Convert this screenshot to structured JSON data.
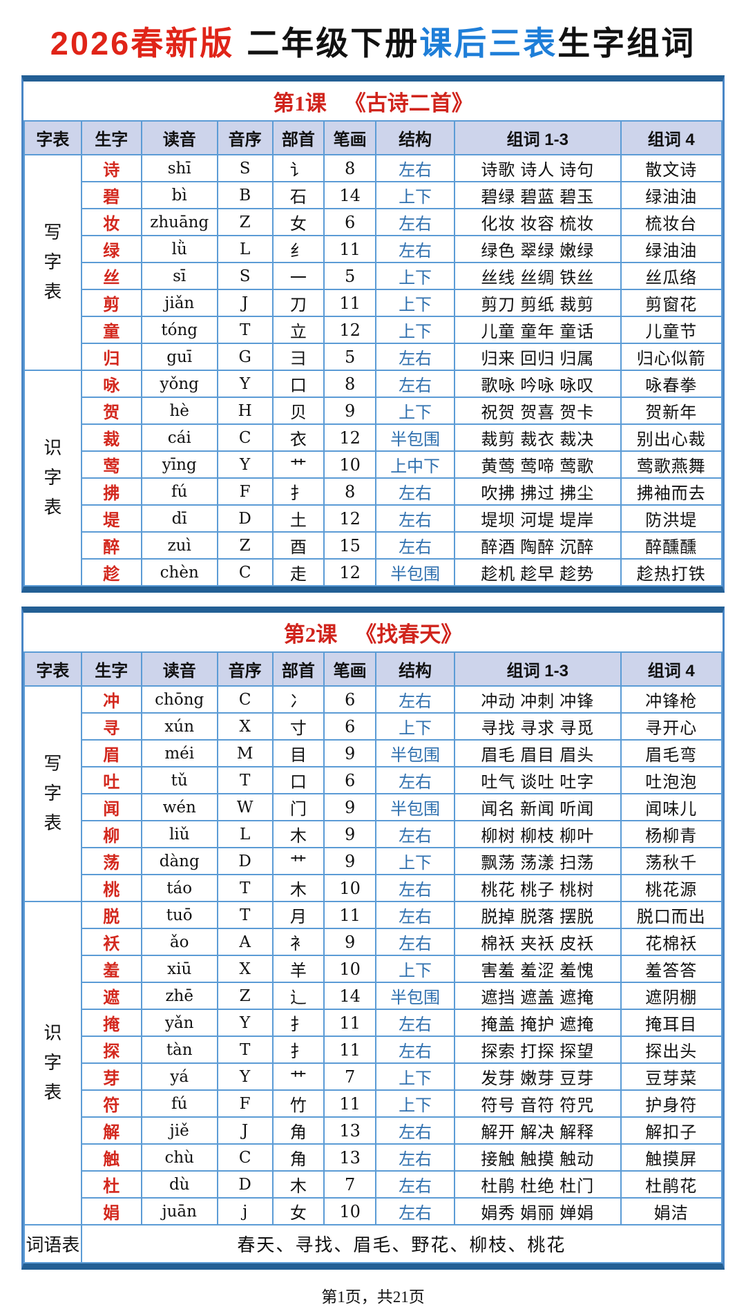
{
  "page": {
    "title_parts": [
      {
        "text": "2026春新版",
        "color": "#e02418"
      },
      {
        "text": "二年级下册",
        "color": "#111111"
      },
      {
        "text": "课后三表",
        "color": "#1e7ed8"
      },
      {
        "text": "生字组词",
        "color": "#111111"
      }
    ],
    "footer": "第1页，共21页"
  },
  "colors": {
    "accent_red": "#d3281e",
    "accent_blue": "#2e6fae",
    "frame_blue": "#235f94",
    "grid_blue": "#5b9bd5",
    "header_bg": "#cdd4eb"
  },
  "columns": [
    "字表",
    "生字",
    "读音",
    "音序",
    "部首",
    "笔画",
    "结构",
    "组词 1-3",
    "组词 4"
  ],
  "tables": [
    {
      "lesson": "第1课",
      "title": "《古诗二首》",
      "sections": [
        {
          "label": "写字表",
          "rows": [
            {
              "char": "诗",
              "pinyin": "shī",
              "initial": "S",
              "radical": "讠",
              "strokes": "8",
              "structure": "左右",
              "words": "诗歌 诗人 诗句",
              "word4": "散文诗"
            },
            {
              "char": "碧",
              "pinyin": "bì",
              "initial": "B",
              "radical": "石",
              "strokes": "14",
              "structure": "上下",
              "words": "碧绿 碧蓝 碧玉",
              "word4": "绿油油"
            },
            {
              "char": "妆",
              "pinyin": "zhuāng",
              "initial": "Z",
              "radical": "女",
              "strokes": "6",
              "structure": "左右",
              "words": "化妆 妆容 梳妆",
              "word4": "梳妆台"
            },
            {
              "char": "绿",
              "pinyin": "lǜ",
              "initial": "L",
              "radical": "纟",
              "strokes": "11",
              "structure": "左右",
              "words": "绿色 翠绿 嫩绿",
              "word4": "绿油油"
            },
            {
              "char": "丝",
              "pinyin": "sī",
              "initial": "S",
              "radical": "一",
              "strokes": "5",
              "structure": "上下",
              "words": "丝线 丝绸 铁丝",
              "word4": "丝瓜络"
            },
            {
              "char": "剪",
              "pinyin": "jiǎn",
              "initial": "J",
              "radical": "刀",
              "strokes": "11",
              "structure": "上下",
              "words": "剪刀 剪纸 裁剪",
              "word4": "剪窗花"
            },
            {
              "char": "童",
              "pinyin": "tóng",
              "initial": "T",
              "radical": "立",
              "strokes": "12",
              "structure": "上下",
              "words": "儿童 童年 童话",
              "word4": "儿童节"
            },
            {
              "char": "归",
              "pinyin": "guī",
              "initial": "G",
              "radical": "彐",
              "strokes": "5",
              "structure": "左右",
              "words": "归来 回归 归属",
              "word4": "归心似箭"
            }
          ]
        },
        {
          "label": "识字表",
          "rows": [
            {
              "char": "咏",
              "pinyin": "yǒng",
              "initial": "Y",
              "radical": "口",
              "strokes": "8",
              "structure": "左右",
              "words": "歌咏 吟咏 咏叹",
              "word4": "咏春拳"
            },
            {
              "char": "贺",
              "pinyin": "hè",
              "initial": "H",
              "radical": "贝",
              "strokes": "9",
              "structure": "上下",
              "words": "祝贺 贺喜 贺卡",
              "word4": "贺新年"
            },
            {
              "char": "裁",
              "pinyin": "cái",
              "initial": "C",
              "radical": "衣",
              "strokes": "12",
              "structure": "半包围",
              "words": "裁剪 裁衣 裁决",
              "word4": "别出心裁"
            },
            {
              "char": "莺",
              "pinyin": "yīng",
              "initial": "Y",
              "radical": "艹",
              "strokes": "10",
              "structure": "上中下",
              "words": "黄莺 莺啼 莺歌",
              "word4": "莺歌燕舞"
            },
            {
              "char": "拂",
              "pinyin": "fú",
              "initial": "F",
              "radical": "扌",
              "strokes": "8",
              "structure": "左右",
              "words": "吹拂 拂过 拂尘",
              "word4": "拂袖而去"
            },
            {
              "char": "堤",
              "pinyin": "dī",
              "initial": "D",
              "radical": "土",
              "strokes": "12",
              "structure": "左右",
              "words": "堤坝 河堤 堤岸",
              "word4": "防洪堤"
            },
            {
              "char": "醉",
              "pinyin": "zuì",
              "initial": "Z",
              "radical": "酉",
              "strokes": "15",
              "structure": "左右",
              "words": "醉酒 陶醉 沉醉",
              "word4": "醉醺醺"
            },
            {
              "char": "趁",
              "pinyin": "chèn",
              "initial": "C",
              "radical": "走",
              "strokes": "12",
              "structure": "半包围",
              "words": "趁机 趁早 趁势",
              "word4": "趁热打铁"
            }
          ]
        }
      ],
      "word_list": null
    },
    {
      "lesson": "第2课",
      "title": "《找春天》",
      "sections": [
        {
          "label": "写字表",
          "rows": [
            {
              "char": "冲",
              "pinyin": "chōng",
              "initial": "C",
              "radical": "冫",
              "strokes": "6",
              "structure": "左右",
              "words": "冲动 冲刺 冲锋",
              "word4": "冲锋枪"
            },
            {
              "char": "寻",
              "pinyin": "xún",
              "initial": "X",
              "radical": "寸",
              "strokes": "6",
              "structure": "上下",
              "words": "寻找 寻求 寻觅",
              "word4": "寻开心"
            },
            {
              "char": "眉",
              "pinyin": "méi",
              "initial": "M",
              "radical": "目",
              "strokes": "9",
              "structure": "半包围",
              "words": "眉毛 眉目 眉头",
              "word4": "眉毛弯"
            },
            {
              "char": "吐",
              "pinyin": "tǔ",
              "initial": "T",
              "radical": "口",
              "strokes": "6",
              "structure": "左右",
              "words": "吐气 谈吐 吐字",
              "word4": "吐泡泡"
            },
            {
              "char": "闻",
              "pinyin": "wén",
              "initial": "W",
              "radical": "门",
              "strokes": "9",
              "structure": "半包围",
              "words": "闻名 新闻 听闻",
              "word4": "闻味儿"
            },
            {
              "char": "柳",
              "pinyin": "liǔ",
              "initial": "L",
              "radical": "木",
              "strokes": "9",
              "structure": "左右",
              "words": "柳树 柳枝 柳叶",
              "word4": "杨柳青"
            },
            {
              "char": "荡",
              "pinyin": "dàng",
              "initial": "D",
              "radical": "艹",
              "strokes": "9",
              "structure": "上下",
              "words": "飘荡 荡漾 扫荡",
              "word4": "荡秋千"
            },
            {
              "char": "桃",
              "pinyin": "táo",
              "initial": "T",
              "radical": "木",
              "strokes": "10",
              "structure": "左右",
              "words": "桃花 桃子 桃树",
              "word4": "桃花源"
            }
          ]
        },
        {
          "label": "识字表",
          "rows": [
            {
              "char": "脱",
              "pinyin": "tuō",
              "initial": "T",
              "radical": "月",
              "strokes": "11",
              "structure": "左右",
              "words": "脱掉 脱落 摆脱",
              "word4": "脱口而出"
            },
            {
              "char": "袄",
              "pinyin": "ǎo",
              "initial": "A",
              "radical": "衤",
              "strokes": "9",
              "structure": "左右",
              "words": "棉袄 夹袄 皮袄",
              "word4": "花棉袄"
            },
            {
              "char": "羞",
              "pinyin": "xiū",
              "initial": "X",
              "radical": "羊",
              "strokes": "10",
              "structure": "上下",
              "words": "害羞 羞涩 羞愧",
              "word4": "羞答答"
            },
            {
              "char": "遮",
              "pinyin": "zhē",
              "initial": "Z",
              "radical": "辶",
              "strokes": "14",
              "structure": "半包围",
              "words": "遮挡 遮盖 遮掩",
              "word4": "遮阴棚"
            },
            {
              "char": "掩",
              "pinyin": "yǎn",
              "initial": "Y",
              "radical": "扌",
              "strokes": "11",
              "structure": "左右",
              "words": "掩盖 掩护 遮掩",
              "word4": "掩耳目"
            },
            {
              "char": "探",
              "pinyin": "tàn",
              "initial": "T",
              "radical": "扌",
              "strokes": "11",
              "structure": "左右",
              "words": "探索 打探 探望",
              "word4": "探出头"
            },
            {
              "char": "芽",
              "pinyin": "yá",
              "initial": "Y",
              "radical": "艹",
              "strokes": "7",
              "structure": "上下",
              "words": "发芽 嫩芽 豆芽",
              "word4": "豆芽菜"
            },
            {
              "char": "符",
              "pinyin": "fú",
              "initial": "F",
              "radical": "竹",
              "strokes": "11",
              "structure": "上下",
              "words": "符号 音符 符咒",
              "word4": "护身符"
            },
            {
              "char": "解",
              "pinyin": "jiě",
              "initial": "J",
              "radical": "角",
              "strokes": "13",
              "structure": "左右",
              "words": "解开 解决 解释",
              "word4": "解扣子"
            },
            {
              "char": "触",
              "pinyin": "chù",
              "initial": "C",
              "radical": "角",
              "strokes": "13",
              "structure": "左右",
              "words": "接触 触摸 触动",
              "word4": "触摸屏"
            },
            {
              "char": "杜",
              "pinyin": "dù",
              "initial": "D",
              "radical": "木",
              "strokes": "7",
              "structure": "左右",
              "words": "杜鹃 杜绝 杜门",
              "word4": "杜鹃花"
            },
            {
              "char": "娟",
              "pinyin": "juān",
              "initial": "j",
              "radical": "女",
              "strokes": "10",
              "structure": "左右",
              "words": "娟秀 娟丽 婵娟",
              "word4": "娟洁"
            }
          ]
        }
      ],
      "word_list": {
        "label": "词语表",
        "words": "春天、寻找、眉毛、野花、柳枝、桃花"
      }
    }
  ]
}
